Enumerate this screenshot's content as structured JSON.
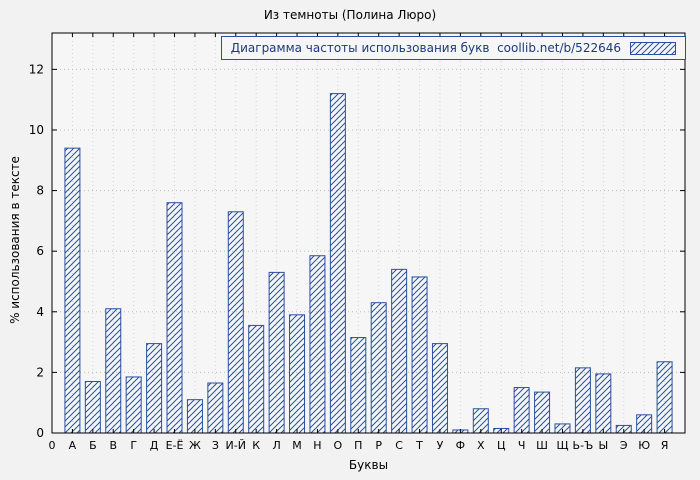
{
  "figure": {
    "background": "#f2f2f2"
  },
  "chart_data": {
    "type": "bar",
    "title": "Из темноты (Полина Люро)",
    "legend": "Диаграмма частоты использования букв  coollib.net/b/522646",
    "xlabel": "Буквы",
    "ylabel": "% использования в тексте",
    "origin_label": "0",
    "categories": [
      "А",
      "Б",
      "В",
      "Г",
      "Д",
      "Е-Ё",
      "Ж",
      "З",
      "И-Й",
      "К",
      "Л",
      "М",
      "Н",
      "О",
      "П",
      "Р",
      "С",
      "Т",
      "У",
      "Ф",
      "Х",
      "Ц",
      "Ч",
      "Ш",
      "Щ",
      "Ь-Ъ",
      "Ы",
      "Э",
      "Ю",
      "Я"
    ],
    "values": [
      9.4,
      1.7,
      4.1,
      1.85,
      2.95,
      7.6,
      1.1,
      1.65,
      7.3,
      3.55,
      5.3,
      3.9,
      5.85,
      11.2,
      3.15,
      4.3,
      5.4,
      5.15,
      2.95,
      0.1,
      0.8,
      0.15,
      1.5,
      1.35,
      0.3,
      2.15,
      1.95,
      0.25,
      0.6,
      2.35
    ],
    "yticks": [
      0,
      2,
      4,
      6,
      8,
      10,
      12
    ],
    "ylim": [
      0,
      13.2
    ],
    "grid": true,
    "legend_position": "top-right",
    "bar_color": "#2b4fa2",
    "grid_color": "#bdbdbd",
    "frame_color": "#000000",
    "hatch": "diagonal"
  }
}
